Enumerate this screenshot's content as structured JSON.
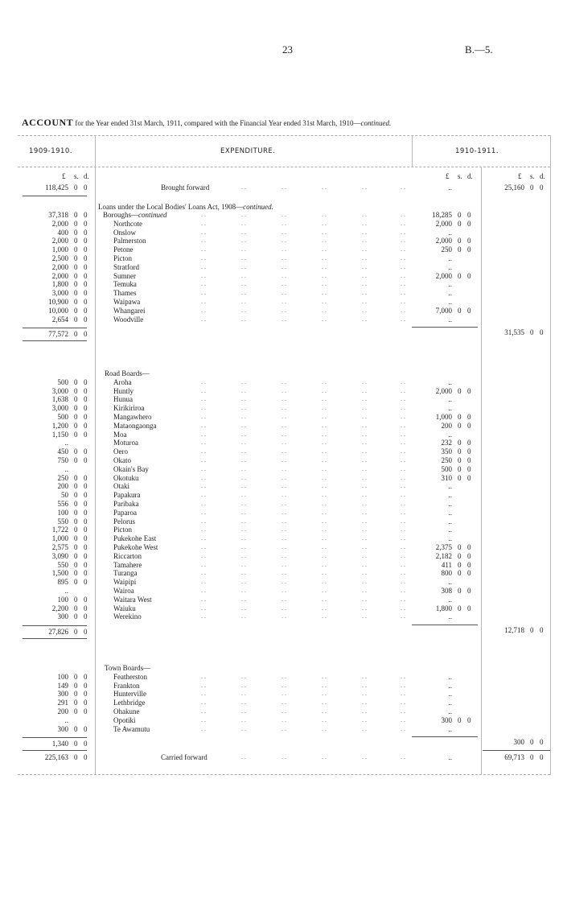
{
  "header": {
    "page_number": "23",
    "doc_ref": "B.—5."
  },
  "title": {
    "lead": "ACCOUNT",
    "text": "for the Year ended 31st March, 1911, compared with the Financial Year ended 31st March, 1910—",
    "italic": "continued."
  },
  "table": {
    "col_1909": "1909-1910.",
    "col_exp": "EXPENDITURE.",
    "col_1911": "1910-1911.",
    "unit_pound": "£",
    "unit_s": "s.",
    "unit_d": "d.",
    "brought_forward": {
      "label": "Brought forward",
      "prev": "118,425",
      "inner": "..",
      "outer": "25,160"
    },
    "loans_heading": "Loans under the Local Bodies' Loans Act, 1908—",
    "loans_heading_italic": "continued.",
    "boroughs": {
      "heading": "Boroughs—",
      "heading_italic": "continued",
      "heading_prev": "37,318",
      "heading_inner": "18,285",
      "rows": [
        {
          "name": "Northcote",
          "prev": "2,000",
          "inner": "2,000"
        },
        {
          "name": "Onslow",
          "prev": "400",
          "inner": ".."
        },
        {
          "name": "Palmerston",
          "prev": "2,000",
          "inner": "2,000"
        },
        {
          "name": "Petone",
          "prev": "1,000",
          "inner": "250"
        },
        {
          "name": "Picton",
          "prev": "2,500",
          "inner": ".."
        },
        {
          "name": "Stratford",
          "prev": "2,000",
          "inner": ".."
        },
        {
          "name": "Sumner",
          "prev": "2,000",
          "inner": "2,000"
        },
        {
          "name": "Temuka",
          "prev": "1,800",
          "inner": ".."
        },
        {
          "name": "Thames",
          "prev": "3,000",
          "inner": ".."
        },
        {
          "name": "Waipawa",
          "prev": "10,900",
          "inner": ".."
        },
        {
          "name": "Whangarei",
          "prev": "10,000",
          "inner": "7,000"
        },
        {
          "name": "Woodville",
          "prev": "2,654",
          "inner": ".."
        }
      ],
      "total_prev": "77,572",
      "total_outer": "31,535"
    },
    "road_boards": {
      "heading": "Road Boards—",
      "rows": [
        {
          "name": "Aroha",
          "prev": "500",
          "inner": ".."
        },
        {
          "name": "Huntly",
          "prev": "3,000",
          "inner": "2,000"
        },
        {
          "name": "Hunua",
          "prev": "1,638",
          "inner": ".."
        },
        {
          "name": "Kirikiriroa",
          "prev": "3,000",
          "inner": ".."
        },
        {
          "name": "Mangawhero",
          "prev": "500",
          "inner": "1,000"
        },
        {
          "name": "Mataongaonga",
          "prev": "1,200",
          "inner": "200"
        },
        {
          "name": "Moa",
          "prev": "1,150",
          "inner": ".."
        },
        {
          "name": "Moturoa",
          "prev": "..",
          "inner": "232"
        },
        {
          "name": "Oero",
          "prev": "450",
          "inner": "350"
        },
        {
          "name": "Okato",
          "prev": "750",
          "inner": "250"
        },
        {
          "name": "Okain's Bay",
          "prev": "..",
          "inner": "500"
        },
        {
          "name": "Okotuku",
          "prev": "250",
          "inner": "310"
        },
        {
          "name": "Otaki",
          "prev": "200",
          "inner": ".."
        },
        {
          "name": "Papakura",
          "prev": "50",
          "inner": ".."
        },
        {
          "name": "Paribaka",
          "prev": "556",
          "inner": ".."
        },
        {
          "name": "Paparoa",
          "prev": "100",
          "inner": ".."
        },
        {
          "name": "Pelorus",
          "prev": "550",
          "inner": ".."
        },
        {
          "name": "Picton",
          "prev": "1,722",
          "inner": ".."
        },
        {
          "name": "Pukekohe East",
          "prev": "1,000",
          "inner": ".."
        },
        {
          "name": "Pukekohe West",
          "prev": "2,575",
          "inner": "2,375"
        },
        {
          "name": "Riccarton",
          "prev": "3,090",
          "inner": "2,182"
        },
        {
          "name": "Tamahere",
          "prev": "550",
          "inner": "411"
        },
        {
          "name": "Turanga",
          "prev": "1,500",
          "inner": "800"
        },
        {
          "name": "Waipipi",
          "prev": "895",
          "inner": ".."
        },
        {
          "name": "Wairoa",
          "prev": "..",
          "inner": "308"
        },
        {
          "name": "Waitara West",
          "prev": "100",
          "inner": ".."
        },
        {
          "name": "Waiuku",
          "prev": "2,200",
          "inner": "1,800"
        },
        {
          "name": "Werekino",
          "prev": "300",
          "inner": ".."
        }
      ],
      "total_prev": "27,826",
      "total_outer": "12,718"
    },
    "town_boards": {
      "heading": "Town Boards—",
      "rows": [
        {
          "name": "Featherston",
          "prev": "100",
          "inner": ".."
        },
        {
          "name": "Frankton",
          "prev": "149",
          "inner": ".."
        },
        {
          "name": "Hunterville",
          "prev": "300",
          "inner": ".."
        },
        {
          "name": "Lethbridge",
          "prev": "291",
          "inner": ".."
        },
        {
          "name": "Ohakune",
          "prev": "200",
          "inner": ".."
        },
        {
          "name": "Opotiki",
          "prev": "..",
          "inner": "300"
        },
        {
          "name": "Te Awamutu",
          "prev": "300",
          "inner": ".."
        }
      ],
      "total_prev": "1,340",
      "total_outer": "300"
    },
    "carried_forward": {
      "label": "Carried forward",
      "prev": "225,163",
      "inner": "..",
      "outer": "69,713"
    },
    "zero": "0",
    "dots": ". ."
  }
}
